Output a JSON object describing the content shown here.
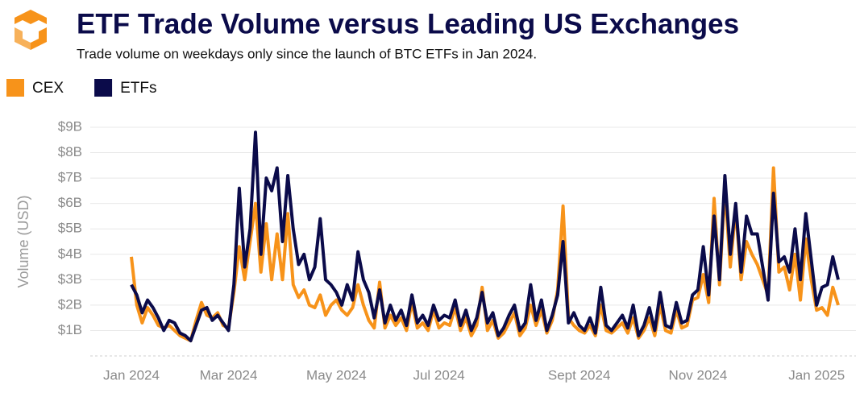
{
  "chart_data": {
    "type": "line",
    "title": "ETF Trade Volume versus Leading US Exchanges",
    "subtitle": "Trade volume on weekdays only since the launch of BTC ETFs in Jan 2024.",
    "y_label": "Volume (USD)",
    "legend": "top-left",
    "grid": true,
    "ylim": [
      0,
      9
    ],
    "yticks": [
      {
        "value": 1,
        "label": "$1B"
      },
      {
        "value": 2,
        "label": "$2B"
      },
      {
        "value": 3,
        "label": "$3B"
      },
      {
        "value": 4,
        "label": "$4B"
      },
      {
        "value": 5,
        "label": "$5B"
      },
      {
        "value": 6,
        "label": "$6B"
      },
      {
        "value": 7,
        "label": "$7B"
      },
      {
        "value": 8,
        "label": "$8B"
      },
      {
        "value": 9,
        "label": "$9B"
      }
    ],
    "categories": [
      "Jan 2024",
      null,
      null,
      null,
      null,
      null,
      null,
      null,
      null,
      null,
      null,
      null,
      null,
      null,
      null,
      null,
      null,
      null,
      "Mar 2024",
      null,
      null,
      null,
      null,
      null,
      null,
      null,
      null,
      null,
      null,
      null,
      null,
      null,
      null,
      null,
      null,
      null,
      null,
      null,
      "May 2024",
      null,
      null,
      null,
      null,
      null,
      null,
      null,
      null,
      null,
      null,
      null,
      null,
      null,
      null,
      null,
      null,
      null,
      null,
      "Jul 2024",
      null,
      null,
      null,
      null,
      null,
      null,
      null,
      null,
      null,
      null,
      null,
      null,
      null,
      null,
      null,
      null,
      null,
      null,
      null,
      null,
      null,
      null,
      null,
      null,
      null,
      "Sept 2024",
      null,
      null,
      null,
      null,
      null,
      null,
      null,
      null,
      null,
      null,
      null,
      null,
      null,
      null,
      null,
      null,
      null,
      null,
      null,
      null,
      null,
      "Nov 2024",
      null,
      null,
      null,
      null,
      null,
      null,
      null,
      null,
      null,
      null,
      null,
      null,
      null,
      null,
      null,
      null,
      null,
      null,
      null,
      null,
      null,
      "Jan 2025",
      null,
      null,
      null,
      null
    ],
    "series": [
      {
        "name": "CEX",
        "color": "#f7931a",
        "values": [
          3.9,
          2.0,
          1.3,
          1.9,
          1.6,
          1.2,
          1.1,
          1.2,
          1.0,
          0.8,
          0.7,
          0.6,
          1.4,
          2.1,
          1.6,
          1.5,
          1.7,
          1.2,
          1.1,
          2.5,
          4.3,
          3.0,
          4.5,
          6.0,
          3.3,
          5.2,
          3.0,
          4.8,
          3.0,
          5.6,
          2.8,
          2.3,
          2.6,
          2.0,
          1.9,
          2.4,
          1.6,
          2.0,
          2.2,
          1.8,
          1.6,
          1.9,
          2.8,
          2.0,
          1.4,
          1.1,
          2.9,
          1.1,
          1.6,
          1.2,
          1.5,
          1.0,
          2.1,
          1.1,
          1.3,
          1.0,
          1.8,
          1.1,
          1.3,
          1.2,
          1.9,
          1.0,
          1.5,
          0.8,
          1.2,
          2.7,
          1.0,
          1.4,
          0.7,
          0.9,
          1.3,
          1.7,
          0.8,
          1.1,
          2.0,
          1.2,
          1.8,
          0.9,
          1.4,
          2.6,
          5.9,
          1.5,
          1.2,
          1.0,
          0.9,
          1.2,
          0.8,
          2.0,
          1.0,
          0.9,
          1.1,
          1.3,
          0.9,
          1.5,
          0.7,
          1.0,
          1.5,
          0.8,
          2.0,
          1.0,
          0.9,
          1.8,
          1.1,
          1.2,
          2.2,
          2.3,
          3.2,
          2.1,
          6.2,
          2.8,
          6.6,
          3.5,
          5.8,
          3.0,
          4.5,
          4.0,
          3.6,
          3.0,
          2.4,
          7.4,
          3.3,
          3.5,
          2.6,
          4.0,
          2.2,
          4.6,
          3.0,
          1.8,
          1.9,
          1.6,
          2.7,
          2.0
        ]
      },
      {
        "name": "ETFs",
        "color": "#0b0b4a",
        "values": [
          2.8,
          2.4,
          1.7,
          2.2,
          1.9,
          1.5,
          1.0,
          1.4,
          1.3,
          0.9,
          0.8,
          0.6,
          1.2,
          1.8,
          1.9,
          1.4,
          1.6,
          1.3,
          1.0,
          2.8,
          6.6,
          3.5,
          5.0,
          8.8,
          4.0,
          7.0,
          6.5,
          7.4,
          4.5,
          7.1,
          5.0,
          3.6,
          4.0,
          3.0,
          3.5,
          5.4,
          3.0,
          2.8,
          2.5,
          2.0,
          2.8,
          2.2,
          4.1,
          3.0,
          2.5,
          1.5,
          2.6,
          1.3,
          2.0,
          1.4,
          1.8,
          1.2,
          2.4,
          1.3,
          1.6,
          1.2,
          2.0,
          1.4,
          1.6,
          1.5,
          2.2,
          1.2,
          1.8,
          1.0,
          1.5,
          2.5,
          1.3,
          1.7,
          0.8,
          1.1,
          1.6,
          2.0,
          1.0,
          1.3,
          2.8,
          1.4,
          2.2,
          1.0,
          1.6,
          2.4,
          4.5,
          1.3,
          1.7,
          1.2,
          1.0,
          1.5,
          0.9,
          2.7,
          1.2,
          1.0,
          1.3,
          1.6,
          1.1,
          2.0,
          0.8,
          1.2,
          1.9,
          1.0,
          2.5,
          1.2,
          1.1,
          2.1,
          1.3,
          1.4,
          2.4,
          2.6,
          4.3,
          2.4,
          5.5,
          3.0,
          7.1,
          4.0,
          6.0,
          3.3,
          5.5,
          4.8,
          4.8,
          3.5,
          2.2,
          6.4,
          3.7,
          3.9,
          3.3,
          5.0,
          3.0,
          5.6,
          3.8,
          2.0,
          2.7,
          2.8,
          3.9,
          3.0
        ]
      }
    ]
  }
}
